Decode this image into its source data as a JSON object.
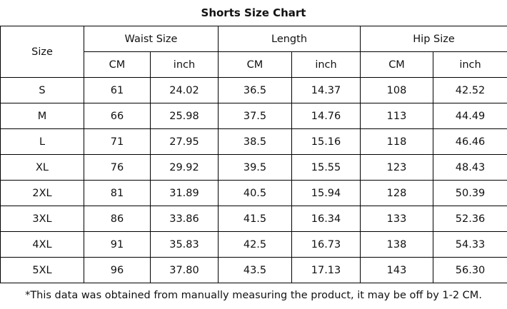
{
  "header": {
    "title": "Shorts Size Chart"
  },
  "table": {
    "size_label": "Size",
    "groups": [
      "Waist Size",
      "Length",
      "Hip Size"
    ],
    "units": [
      "CM",
      "inch",
      "CM",
      "inch",
      "CM",
      "inch"
    ],
    "rows": [
      [
        "S",
        "61",
        "24.02",
        "36.5",
        "14.37",
        "108",
        "42.52"
      ],
      [
        "M",
        "66",
        "25.98",
        "37.5",
        "14.76",
        "113",
        "44.49"
      ],
      [
        "L",
        "71",
        "27.95",
        "38.5",
        "15.16",
        "118",
        "46.46"
      ],
      [
        "XL",
        "76",
        "29.92",
        "39.5",
        "15.55",
        "123",
        "48.43"
      ],
      [
        "2XL",
        "81",
        "31.89",
        "40.5",
        "15.94",
        "128",
        "50.39"
      ],
      [
        "3XL",
        "86",
        "33.86",
        "41.5",
        "16.34",
        "133",
        "52.36"
      ],
      [
        "4XL",
        "91",
        "35.83",
        "42.5",
        "16.73",
        "138",
        "54.33"
      ],
      [
        "5XL",
        "96",
        "37.80",
        "43.5",
        "17.13",
        "143",
        "56.30"
      ]
    ]
  },
  "footnote": "*This data was obtained from manually measuring the product, it may be off by 1-2 CM."
}
